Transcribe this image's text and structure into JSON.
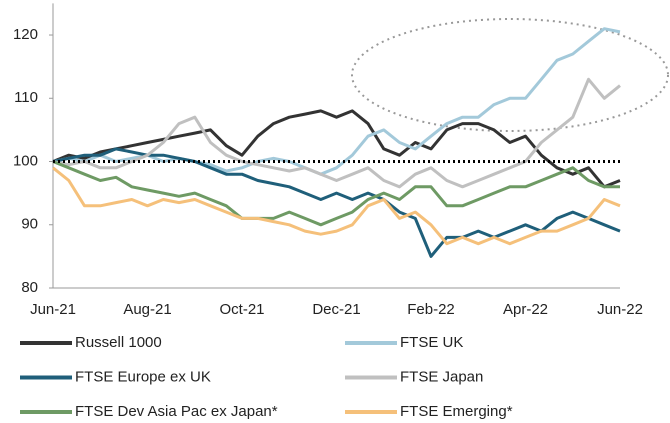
{
  "chart_data": {
    "type": "line",
    "categories": [
      "Jun-21",
      null,
      null,
      null,
      null,
      null,
      "Aug-21",
      null,
      null,
      null,
      null,
      null,
      "Oct-21",
      null,
      null,
      null,
      null,
      null,
      "Dec-21",
      null,
      null,
      null,
      null,
      null,
      "Feb-22",
      null,
      null,
      null,
      null,
      null,
      "Apr-22",
      null,
      null,
      null,
      null,
      null,
      "Jun-22"
    ],
    "series": [
      {
        "name": "Russell 1000",
        "color": "#333333",
        "values": [
          100,
          101,
          100.5,
          101.5,
          102,
          102.5,
          103,
          103.5,
          104,
          104.5,
          105,
          102.5,
          101,
          104,
          106,
          107,
          107.5,
          108,
          107,
          108,
          106,
          102,
          101,
          103,
          102,
          105,
          106,
          106,
          105,
          103,
          104,
          101,
          99,
          98,
          99,
          96,
          97
        ]
      },
      {
        "name": "FTSE UK",
        "color": "#a3c9da",
        "values": [
          100,
          100.5,
          100,
          101,
          100,
          100.5,
          101,
          100,
          100.5,
          100,
          99.5,
          98.5,
          99,
          100,
          100.5,
          100,
          99,
          98,
          99,
          101,
          104,
          105,
          103,
          102,
          104,
          106,
          107,
          107,
          109,
          110,
          110,
          113,
          116,
          117,
          119,
          121,
          120.5
        ]
      },
      {
        "name": "FTSE Europe ex UK",
        "color": "#1f5f7a",
        "values": [
          100,
          100.5,
          101,
          101,
          102,
          101.5,
          101,
          101,
          100.5,
          100,
          99,
          98,
          98,
          97,
          96.5,
          96,
          95,
          94,
          95,
          94,
          95,
          94,
          92,
          91,
          85,
          88,
          88,
          89,
          88,
          89,
          90,
          89,
          91,
          92,
          91,
          90,
          89
        ]
      },
      {
        "name": "FTSE Japan",
        "color": "#c0c0c0",
        "values": [
          100,
          99.5,
          100,
          99,
          99,
          100,
          101,
          103,
          106,
          107,
          103,
          101,
          100,
          99.5,
          99,
          98.5,
          99,
          98,
          97,
          98,
          99,
          97,
          96,
          98,
          99,
          97,
          96,
          97,
          98,
          99,
          100,
          103,
          105,
          107,
          113,
          110,
          112
        ]
      },
      {
        "name": "FTSE Dev Asia Pac ex Japan*",
        "color": "#6e9a64",
        "values": [
          100,
          99,
          98,
          97,
          97.5,
          96,
          95.5,
          95,
          94.5,
          95,
          94,
          93,
          91,
          91,
          91,
          92,
          91,
          90,
          91,
          92,
          94,
          95,
          94,
          96,
          96,
          93,
          93,
          94,
          95,
          96,
          96,
          97,
          98,
          99,
          97,
          96,
          96
        ]
      },
      {
        "name": "FTSE Emerging*",
        "color": "#f5c07a",
        "values": [
          99,
          97,
          93,
          93,
          93.5,
          94,
          93,
          94,
          93.5,
          94,
          93,
          92,
          91,
          91,
          90.5,
          90,
          89,
          88.5,
          89,
          90,
          93,
          94,
          91,
          92,
          90,
          87,
          88,
          87,
          88,
          87,
          88,
          89,
          89,
          90,
          91,
          94,
          93
        ]
      }
    ],
    "ylim": [
      80,
      125
    ],
    "yticks": [
      80,
      90,
      100,
      110,
      120
    ],
    "hline": 100
  }
}
